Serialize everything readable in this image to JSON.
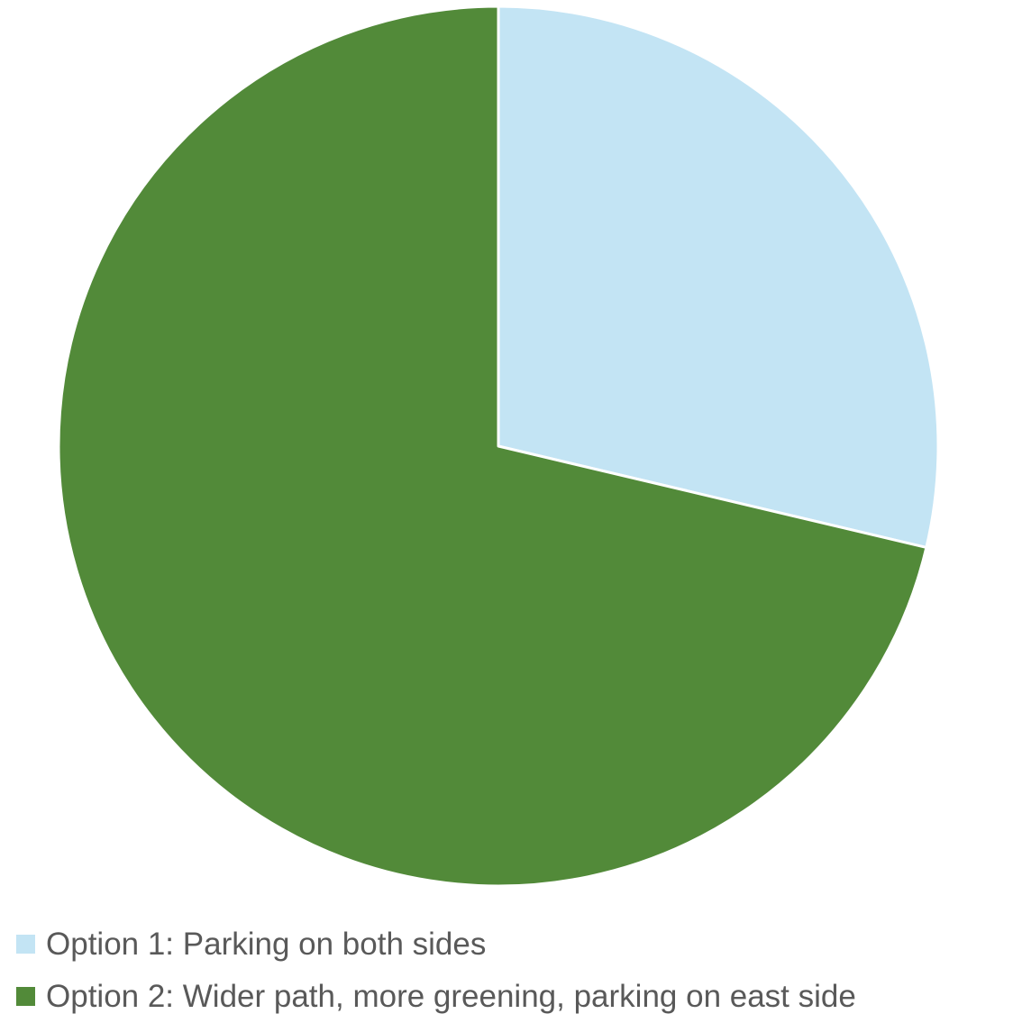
{
  "chart_data": {
    "type": "pie",
    "categories": [
      "Option 1: Parking on both sides",
      "Option 2: Wider path, more greening, parking on east side"
    ],
    "values": [
      28.7,
      71.3
    ],
    "colors": [
      "#C3E4F4",
      "#528A39"
    ],
    "legend_position": "bottom-left",
    "start_angle_deg": 0,
    "direction": "clockwise"
  }
}
